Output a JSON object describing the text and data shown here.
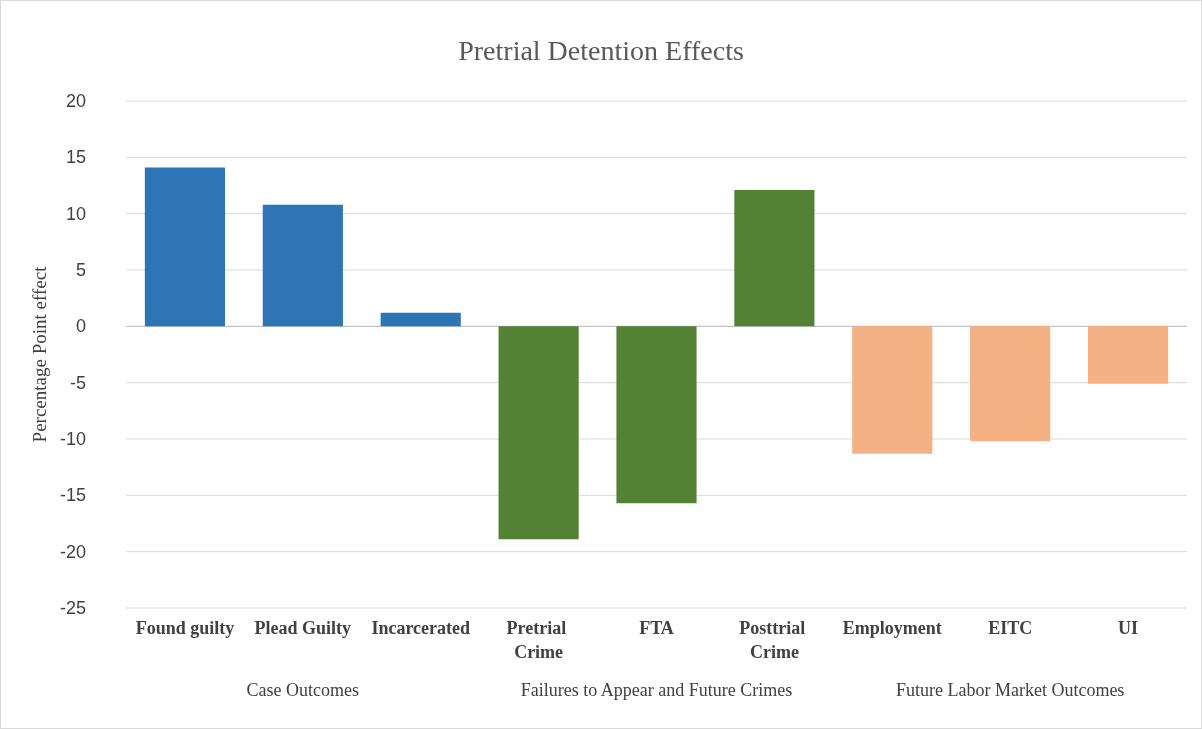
{
  "chart_data": {
    "type": "bar",
    "title": "Pretrial Detention Effects",
    "ylabel": "Percentage Point effect",
    "categories": [
      "Found guilty",
      "Plead Guilty",
      "Incarcerated",
      "Pretrial Crime",
      "FTA",
      "Posttrial Crime",
      "Employment",
      "EITC",
      "UI"
    ],
    "values": [
      14.1,
      10.8,
      1.2,
      -18.9,
      -15.7,
      12.1,
      -11.3,
      -10.2,
      -5.1
    ],
    "colors": [
      "#2e75b6",
      "#2e75b6",
      "#2e75b6",
      "#548235",
      "#548235",
      "#548235",
      "#f4b183",
      "#f4b183",
      "#f4b183"
    ],
    "ylim": [
      -25,
      20
    ],
    "yticks": [
      -25,
      -20,
      -15,
      -10,
      -5,
      0,
      5,
      10,
      15,
      20
    ],
    "grid": "y",
    "annotations": [
      "Case Outcomes",
      "Failures to Appear and Future Crimes",
      "Future Labor Market Outcomes"
    ]
  }
}
